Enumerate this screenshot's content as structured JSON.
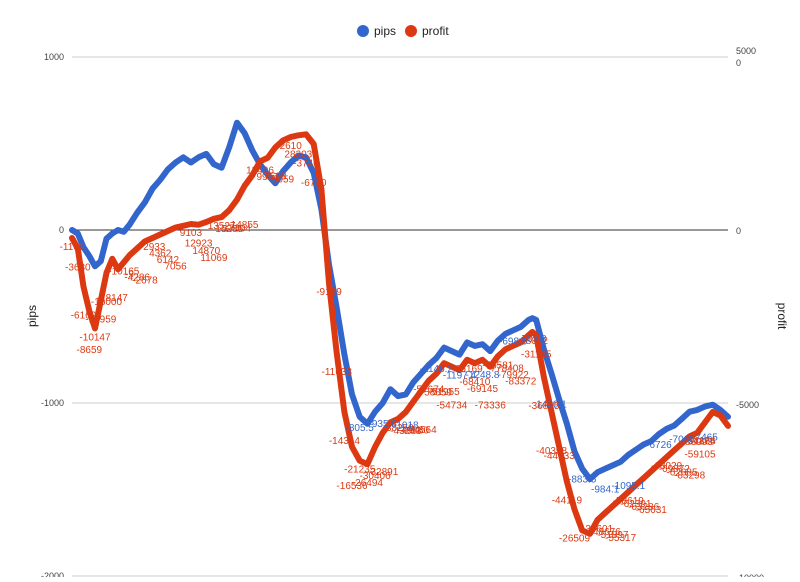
{
  "chart_data": {
    "type": "line",
    "legend_position": "top",
    "legend": [
      {
        "name": "pips",
        "color": "#3366cc"
      },
      {
        "name": "profit",
        "color": "#dc3912"
      }
    ],
    "ylabel_left": "pips",
    "ylabel_right": "profit",
    "left_axis": {
      "ticks": [
        1000,
        0,
        -1000,
        -2000
      ],
      "tick_labels": [
        "1000",
        "0",
        "-1000",
        "-2000"
      ],
      "ylim": [
        -2000,
        1000
      ]
    },
    "right_axis": {
      "top_label": "5000",
      "ticks": [
        0,
        -5000,
        -10000
      ],
      "tick_labels": [
        "0",
        "0",
        "-5000",
        "-10000"
      ]
    },
    "gridlines": true,
    "series": [
      {
        "name": "pips",
        "color": "#3366cc",
        "axis": "left",
        "points": [
          [
            0,
            0
          ],
          [
            3,
            -20
          ],
          [
            6,
            -100
          ],
          [
            9,
            -150
          ],
          [
            12,
            -210
          ],
          [
            15,
            -180
          ],
          [
            18,
            -50
          ],
          [
            21,
            -20
          ],
          [
            24,
            0
          ],
          [
            27,
            -10
          ],
          [
            30,
            30
          ],
          [
            34,
            100
          ],
          [
            38,
            160
          ],
          [
            42,
            240
          ],
          [
            46,
            290
          ],
          [
            50,
            350
          ],
          [
            54,
            390
          ],
          [
            58,
            420
          ],
          [
            62,
            390
          ],
          [
            66,
            420
          ],
          [
            70,
            440
          ],
          [
            74,
            380
          ],
          [
            78,
            360
          ],
          [
            82,
            480
          ],
          [
            86,
            620
          ],
          [
            90,
            560
          ],
          [
            94,
            460
          ],
          [
            98,
            380
          ],
          [
            102,
            320
          ],
          [
            106,
            270
          ],
          [
            110,
            340
          ],
          [
            114,
            390
          ],
          [
            118,
            430
          ],
          [
            122,
            420
          ],
          [
            126,
            330
          ],
          [
            130,
            120
          ],
          [
            134,
            -200
          ],
          [
            138,
            -450
          ],
          [
            142,
            -720
          ],
          [
            146,
            -950
          ],
          [
            150,
            -1080
          ],
          [
            154,
            -1120
          ],
          [
            158,
            -1050
          ],
          [
            162,
            -1000
          ],
          [
            166,
            -920
          ],
          [
            170,
            -960
          ],
          [
            174,
            -950
          ],
          [
            178,
            -880
          ],
          [
            182,
            -830
          ],
          [
            186,
            -780
          ],
          [
            190,
            -740
          ],
          [
            194,
            -680
          ],
          [
            198,
            -700
          ],
          [
            202,
            -720
          ],
          [
            206,
            -650
          ],
          [
            210,
            -670
          ],
          [
            214,
            -660
          ],
          [
            218,
            -700
          ],
          [
            222,
            -640
          ],
          [
            226,
            -600
          ],
          [
            230,
            -580
          ],
          [
            234,
            -560
          ],
          [
            238,
            -520
          ],
          [
            240,
            -510
          ],
          [
            242,
            -520
          ],
          [
            246,
            -690
          ],
          [
            250,
            -830
          ],
          [
            254,
            -980
          ],
          [
            258,
            -1120
          ],
          [
            262,
            -1280
          ],
          [
            266,
            -1380
          ],
          [
            270,
            -1440
          ],
          [
            274,
            -1400
          ],
          [
            278,
            -1380
          ],
          [
            282,
            -1360
          ],
          [
            286,
            -1340
          ],
          [
            290,
            -1300
          ],
          [
            294,
            -1270
          ],
          [
            298,
            -1240
          ],
          [
            302,
            -1220
          ],
          [
            306,
            -1180
          ],
          [
            310,
            -1150
          ],
          [
            314,
            -1130
          ],
          [
            318,
            -1090
          ],
          [
            322,
            -1050
          ],
          [
            326,
            -1040
          ],
          [
            330,
            -1020
          ],
          [
            334,
            -1010
          ],
          [
            338,
            -1040
          ],
          [
            342,
            -1080
          ]
        ]
      },
      {
        "name": "profit",
        "color": "#dc3912",
        "axis": "right",
        "points": [
          [
            0,
            -200
          ],
          [
            3,
            -500
          ],
          [
            6,
            -1600
          ],
          [
            9,
            -2300
          ],
          [
            12,
            -2800
          ],
          [
            15,
            -2000
          ],
          [
            18,
            -1200
          ],
          [
            21,
            -800
          ],
          [
            24,
            -1100
          ],
          [
            27,
            -900
          ],
          [
            30,
            -700
          ],
          [
            34,
            -500
          ],
          [
            38,
            -300
          ],
          [
            42,
            -200
          ],
          [
            46,
            -100
          ],
          [
            50,
            0
          ],
          [
            54,
            100
          ],
          [
            58,
            150
          ],
          [
            62,
            200
          ],
          [
            66,
            180
          ],
          [
            70,
            260
          ],
          [
            74,
            350
          ],
          [
            78,
            400
          ],
          [
            82,
            600
          ],
          [
            86,
            900
          ],
          [
            90,
            1300
          ],
          [
            94,
            1600
          ],
          [
            98,
            2000
          ],
          [
            102,
            2100
          ],
          [
            106,
            2400
          ],
          [
            110,
            2600
          ],
          [
            114,
            2700
          ],
          [
            118,
            2750
          ],
          [
            122,
            2780
          ],
          [
            126,
            2500
          ],
          [
            130,
            1200
          ],
          [
            134,
            -1500
          ],
          [
            138,
            -3500
          ],
          [
            142,
            -5200
          ],
          [
            146,
            -6200
          ],
          [
            150,
            -6600
          ],
          [
            154,
            -6700
          ],
          [
            158,
            -6200
          ],
          [
            162,
            -5800
          ],
          [
            166,
            -5500
          ],
          [
            170,
            -5400
          ],
          [
            174,
            -5200
          ],
          [
            178,
            -4900
          ],
          [
            182,
            -4600
          ],
          [
            186,
            -4300
          ],
          [
            190,
            -4100
          ],
          [
            194,
            -3800
          ],
          [
            198,
            -3900
          ],
          [
            202,
            -4000
          ],
          [
            206,
            -3700
          ],
          [
            210,
            -3800
          ],
          [
            214,
            -3700
          ],
          [
            218,
            -3900
          ],
          [
            222,
            -3600
          ],
          [
            226,
            -3400
          ],
          [
            230,
            -3300
          ],
          [
            234,
            -3200
          ],
          [
            238,
            -3000
          ],
          [
            240,
            -2900
          ],
          [
            242,
            -3000
          ],
          [
            246,
            -4200
          ],
          [
            250,
            -5200
          ],
          [
            254,
            -6200
          ],
          [
            258,
            -7200
          ],
          [
            262,
            -8000
          ],
          [
            266,
            -8600
          ],
          [
            270,
            -8700
          ],
          [
            274,
            -8300
          ],
          [
            278,
            -8100
          ],
          [
            282,
            -7900
          ],
          [
            286,
            -7700
          ],
          [
            290,
            -7500
          ],
          [
            294,
            -7300
          ],
          [
            298,
            -7100
          ],
          [
            302,
            -6900
          ],
          [
            306,
            -6700
          ],
          [
            310,
            -6500
          ],
          [
            314,
            -6300
          ],
          [
            318,
            -6100
          ],
          [
            322,
            -5900
          ],
          [
            326,
            -5800
          ],
          [
            330,
            -5500
          ],
          [
            334,
            -5200
          ],
          [
            338,
            -5300
          ],
          [
            342,
            -5600
          ]
        ]
      }
    ],
    "data_labels": {
      "profit": [
        "-1101",
        "-3680",
        "-6169",
        "-8659",
        "-10147",
        "-13959",
        "-16000",
        "-18147",
        "-10165",
        "-9",
        "-4286",
        "-2678",
        "-2933",
        "4362",
        "6142",
        "7056",
        "9103",
        "12923",
        "14870",
        "11069",
        "13527",
        "15285",
        "17304",
        "14855",
        "12406",
        "9957",
        "7508",
        "5059",
        "2610",
        "28203",
        "-3740",
        "-6740",
        "-9189",
        "-11638",
        "-14314",
        "-16536",
        "-21235",
        "-26494",
        "-30406",
        "-32891",
        "-38250",
        "-43283",
        "-49880",
        "-54564",
        "-57674",
        "-58859",
        "-51955",
        "-54734",
        "-65169",
        "-68410",
        "-69145",
        "-73336",
        "-75581",
        "-778408",
        "-79922",
        "-83372",
        "-28002",
        "-31145",
        "-36845",
        "-40398",
        "-44033",
        "-44119",
        "-26509",
        "-29427",
        "-39601",
        "-48676",
        "-51897",
        "-55317",
        "-58619",
        "-62391",
        "-63286",
        "-65631",
        "-68029",
        "-69872",
        "-62685",
        "-83298",
        "-86993",
        "-51866",
        "-54174",
        "-59105"
      ],
      "pips": [
        "-805.5",
        "-935.8",
        "-1018",
        "-1146.2",
        "-1197.4",
        "-1248.8",
        "-698.5",
        "-703.8",
        "1430.1",
        "-883.5",
        "-984.1",
        "-1095.1",
        "-6726",
        "-7068",
        "-7465"
      ]
    }
  }
}
